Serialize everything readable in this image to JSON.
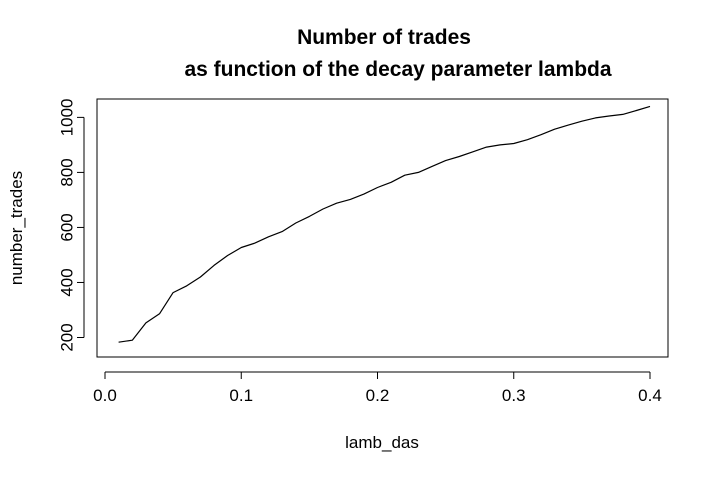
{
  "chart_data": {
    "type": "line",
    "title": "Number of trades",
    "subtitle": "as function of the decay parameter lambda",
    "xlabel": "lamb_das",
    "ylabel": "number_trades",
    "xlim": [
      0.0,
      0.4
    ],
    "ylim": [
      180,
      1045
    ],
    "grid": false,
    "legend": "none",
    "x_ticks": [
      "0.0",
      "0.1",
      "0.2",
      "0.3",
      "0.4"
    ],
    "y_ticks": [
      "200",
      "400",
      "600",
      "800",
      "1000"
    ],
    "line_color": "#000000",
    "series": [
      {
        "x": [
          0.01,
          0.02,
          0.03,
          0.04,
          0.05,
          0.06,
          0.07,
          0.08,
          0.09,
          0.1,
          0.11,
          0.12,
          0.13,
          0.14,
          0.15,
          0.16,
          0.17,
          0.18,
          0.19,
          0.2,
          0.21,
          0.22,
          0.23,
          0.24,
          0.25,
          0.26,
          0.27,
          0.28,
          0.29,
          0.3,
          0.31,
          0.32,
          0.33,
          0.34,
          0.35,
          0.36,
          0.37,
          0.38,
          0.39,
          0.4
        ],
        "y": [
          183,
          190,
          253,
          286,
          363,
          388,
          420,
          462,
          498,
          527,
          543,
          566,
          585,
          616,
          640,
          667,
          688,
          702,
          721,
          745,
          764,
          790,
          800,
          822,
          843,
          858,
          875,
          892,
          900,
          905,
          919,
          937,
          957,
          972,
          986,
          998,
          1005,
          1011,
          1025,
          1040
        ]
      }
    ]
  }
}
